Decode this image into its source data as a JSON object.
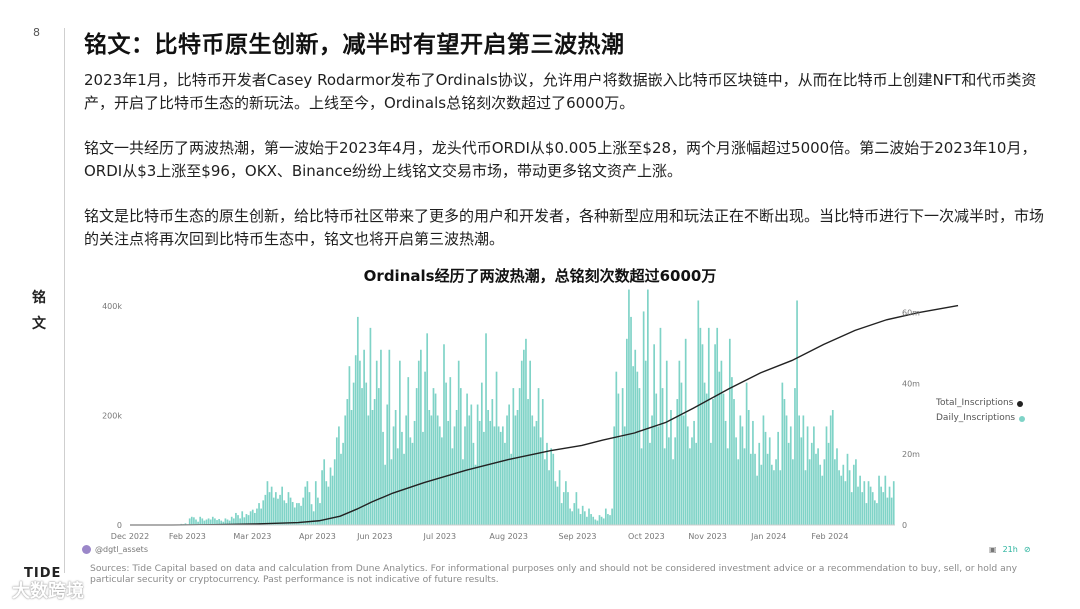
{
  "page_number": "8",
  "side_label": "铭文",
  "title": "铭文：比特币原生创新，减半时有望开启第三波热潮",
  "paragraphs": [
    "2023年1月，比特币开发者Casey Rodarmor发布了Ordinals协议，允许用户将数据嵌入比特币区块链中，从而在比特币上创建NFT和代币类资产，开启了比特币生态的新玩法。上线至今，Ordinals总铭刻次数超过了6000万。",
    "铭文一共经历了两波热潮，第一波始于2023年4月，龙头代币ORDI从$0.005上涨至$28，两个月涨幅超过5000倍。第二波始于2023年10月，ORDI从$3上涨至$96，OKX、Binance纷纷上线铭文交易市场，带动更多铭文资产上涨。",
    "铭文是比特币生态的原生创新，给比特币社区带来了更多的用户和开发者，各种新型应用和玩法正在不断出现。当比特币进行下一次减半时，市场的关注点将再次回到比特币生态中，铭文也将开启第三波热潮。"
  ],
  "chart_title": "Ordinals经历了两波热潮，总铭刻次数超过6000万",
  "chart_data": {
    "type": "bar",
    "x_ticks": [
      "Dec 2022",
      "Feb 2023",
      "Mar 2023",
      "Apr 2023",
      "Jun 2023",
      "Jul 2023",
      "Aug 2023",
      "Sep 2023",
      "Oct 2023",
      "Nov 2023",
      "Jan 2024",
      "Feb 2024"
    ],
    "left_axis": {
      "ticks": [
        "0",
        "200k",
        "400k"
      ],
      "ylim": [
        0,
        420000
      ]
    },
    "right_axis": {
      "ticks": [
        "0",
        "20m",
        "40m",
        "60m"
      ],
      "ylim": [
        0,
        65000000
      ]
    },
    "series": [
      {
        "name": "Daily_Inscriptions",
        "type": "bar",
        "color": "#7fd3c7",
        "values": [
          0,
          0,
          0,
          0,
          0,
          0,
          0,
          0,
          0,
          0,
          0,
          0,
          0,
          0,
          0,
          0,
          0,
          0,
          0,
          0,
          0,
          0,
          0,
          0,
          2000,
          1500,
          3000,
          1000,
          12000,
          15000,
          14000,
          10000,
          6000,
          15000,
          12000,
          8000,
          10000,
          12000,
          10000,
          15000,
          12000,
          9000,
          11000,
          8000,
          6000,
          12000,
          10000,
          8000,
          15000,
          12000,
          22000,
          18000,
          12000,
          25000,
          14000,
          20000,
          18000,
          25000,
          28000,
          22000,
          30000,
          40000,
          30000,
          45000,
          55000,
          80000,
          60000,
          70000,
          50000,
          60000,
          48000,
          55000,
          70000,
          45000,
          40000,
          60000,
          50000,
          42000,
          32000,
          40000,
          40000,
          35000,
          50000,
          70000,
          80000,
          60000,
          38000,
          25000,
          80000,
          50000,
          40000,
          100000,
          120000,
          80000,
          70000,
          105000,
          90000,
          120000,
          160000,
          180000,
          130000,
          150000,
          200000,
          230000,
          290000,
          210000,
          260000,
          310000,
          380000,
          300000,
          250000,
          320000,
          260000,
          200000,
          360000,
          210000,
          230000,
          300000,
          250000,
          320000,
          170000,
          110000,
          220000,
          320000,
          120000,
          180000,
          210000,
          140000,
          300000,
          170000,
          130000,
          200000,
          270000,
          160000,
          150000,
          190000,
          250000,
          300000,
          320000,
          170000,
          280000,
          350000,
          210000,
          200000,
          250000,
          240000,
          200000,
          180000,
          160000,
          330000,
          260000,
          190000,
          270000,
          140000,
          180000,
          210000,
          300000,
          250000,
          120000,
          180000,
          240000,
          200000,
          220000,
          150000,
          110000,
          220000,
          190000,
          260000,
          170000,
          350000,
          210000,
          190000,
          230000,
          180000,
          280000,
          180000,
          170000,
          180000,
          150000,
          200000,
          220000,
          130000,
          250000,
          200000,
          210000,
          250000,
          300000,
          320000,
          340000,
          230000,
          300000,
          200000,
          180000,
          190000,
          250000,
          160000,
          230000,
          120000,
          150000,
          100000,
          140000,
          130000,
          80000,
          70000,
          100000,
          40000,
          60000,
          80000,
          60000,
          30000,
          25000,
          40000,
          60000,
          30000,
          20000,
          35000,
          25000,
          15000,
          30000,
          20000,
          15000,
          10000,
          8000,
          18000,
          15000,
          12000,
          30000,
          20000,
          18000,
          30000,
          180000,
          280000,
          240000,
          160000,
          250000,
          180000,
          340000,
          430000,
          380000,
          290000,
          320000,
          280000,
          250000,
          140000,
          390000,
          300000,
          430000,
          150000,
          200000,
          330000,
          240000,
          180000,
          360000,
          250000,
          140000,
          300000,
          160000,
          210000,
          120000,
          160000,
          230000,
          300000,
          260000,
          200000,
          340000,
          180000,
          140000,
          160000,
          190000,
          150000,
          410000,
          360000,
          330000,
          260000,
          240000,
          360000,
          150000,
          230000,
          330000,
          360000,
          280000,
          300000,
          240000,
          190000,
          140000,
          340000,
          270000,
          230000,
          160000,
          120000,
          200000,
          180000,
          140000,
          260000,
          210000,
          130000,
          190000,
          130000,
          90000,
          150000,
          110000,
          200000,
          170000,
          130000,
          160000,
          110000,
          100000,
          120000,
          170000,
          100000,
          260000,
          230000,
          200000,
          150000,
          180000,
          120000,
          250000,
          410000,
          200000,
          160000,
          200000,
          100000,
          180000,
          120000,
          150000,
          180000,
          130000,
          140000,
          110000,
          90000,
          120000,
          180000,
          150000,
          200000,
          210000,
          120000,
          140000,
          100000,
          90000,
          110000,
          80000,
          130000,
          100000,
          60000,
          110000,
          120000,
          70000,
          90000,
          60000,
          80000,
          40000,
          80000,
          70000,
          60000,
          45000,
          40000,
          90000,
          70000,
          60000,
          90000,
          50000,
          70000,
          50000,
          80000
        ]
      },
      {
        "name": "Total_Inscriptions",
        "type": "line",
        "color": "#222222",
        "points": [
          [
            0,
            0
          ],
          [
            20,
            0
          ],
          [
            40,
            100000
          ],
          [
            60,
            300000
          ],
          [
            80,
            700000
          ],
          [
            90,
            1200000
          ],
          [
            100,
            2500000
          ],
          [
            108,
            4500000
          ],
          [
            115,
            6500000
          ],
          [
            125,
            9000000
          ],
          [
            140,
            12000000
          ],
          [
            160,
            15500000
          ],
          [
            180,
            18500000
          ],
          [
            200,
            21000000
          ],
          [
            215,
            22500000
          ],
          [
            225,
            24000000
          ],
          [
            240,
            26000000
          ],
          [
            255,
            29000000
          ],
          [
            268,
            33000000
          ],
          [
            285,
            38500000
          ],
          [
            300,
            43000000
          ],
          [
            315,
            46500000
          ],
          [
            330,
            51000000
          ],
          [
            345,
            55000000
          ],
          [
            360,
            58000000
          ],
          [
            375,
            60000000
          ],
          [
            394,
            62000000
          ]
        ]
      }
    ]
  },
  "legend": [
    "Total_Inscriptions",
    "Daily_Inscriptions"
  ],
  "credit": "@dgtl_assets",
  "age_label": "21h",
  "sources": "Sources: Tide Capital based on data and calculation from Dune Analytics. For informational purposes only and should not be considered investment advice or a recommendation to buy, sell, or hold any particular security or cryptocurrency. Past performance is not indicative of future results.",
  "brand": "TIDE",
  "watermark": "大数跨境"
}
